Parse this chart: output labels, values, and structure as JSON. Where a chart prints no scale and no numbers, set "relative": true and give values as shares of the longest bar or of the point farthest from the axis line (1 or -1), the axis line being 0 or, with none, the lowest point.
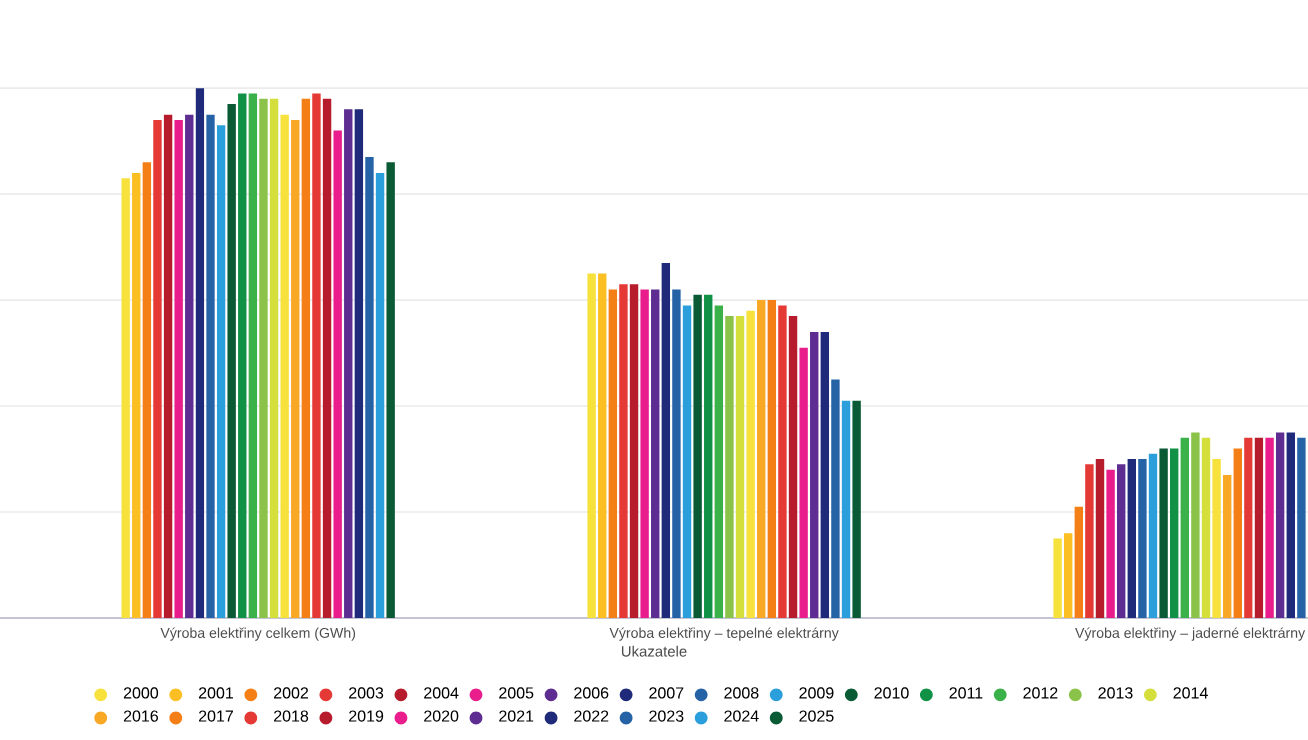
{
  "chart_data": {
    "type": "bar",
    "xlabel": "Ukazatele",
    "relative": true,
    "grid": "y",
    "legend": "bottom",
    "categories": [
      "Výroba elektřiny celkem (GWh)",
      "Výroba elektřiny – tepelné elektrárny",
      "Výroba elektřiny – jaderné elektrárny"
    ],
    "series": [
      {
        "name": "2000",
        "color": "#f7e13d",
        "values": [
          0.83,
          0.65,
          0.15
        ]
      },
      {
        "name": "2001",
        "color": "#fbbf24",
        "values": [
          0.84,
          0.65,
          0.16
        ]
      },
      {
        "name": "2002",
        "color": "#f57f17",
        "values": [
          0.86,
          0.62,
          0.21
        ]
      },
      {
        "name": "2003",
        "color": "#e53935",
        "values": [
          0.94,
          0.63,
          0.29
        ]
      },
      {
        "name": "2004",
        "color": "#b71c2c",
        "values": [
          0.95,
          0.63,
          0.3
        ]
      },
      {
        "name": "2005",
        "color": "#e91e8c",
        "values": [
          0.94,
          0.62,
          0.28
        ]
      },
      {
        "name": "2006",
        "color": "#5e2d91",
        "values": [
          0.95,
          0.62,
          0.29
        ]
      },
      {
        "name": "2007",
        "color": "#1f2a7a",
        "values": [
          1,
          0.67,
          0.3
        ]
      },
      {
        "name": "2008",
        "color": "#2563a6",
        "values": [
          0.95,
          0.62,
          0.3
        ]
      },
      {
        "name": "2009",
        "color": "#2a9fdc",
        "values": [
          0.93,
          0.59,
          0.31
        ]
      },
      {
        "name": "2010",
        "color": "#0b5a36",
        "values": [
          0.97,
          0.61,
          0.32
        ]
      },
      {
        "name": "2011",
        "color": "#119146",
        "values": [
          0.99,
          0.61,
          0.32
        ]
      },
      {
        "name": "2012",
        "color": "#3bb14a",
        "values": [
          0.99,
          0.59,
          0.34
        ]
      },
      {
        "name": "2013",
        "color": "#8bc34a",
        "values": [
          0.98,
          0.57,
          0.35
        ]
      },
      {
        "name": "2014",
        "color": "#d4df3c",
        "values": [
          0.98,
          0.57,
          0.34
        ]
      },
      {
        "color": "#f7e13d",
        "values": [
          0.95,
          0.58,
          0.3
        ]
      },
      {
        "name": "2016",
        "color": "#f9a825",
        "values": [
          0.94,
          0.6,
          0.27
        ]
      },
      {
        "name": "2017",
        "color": "#f57f17",
        "values": [
          0.98,
          0.6,
          0.32
        ]
      },
      {
        "name": "2018",
        "color": "#e53935",
        "values": [
          0.99,
          0.59,
          0.34
        ]
      },
      {
        "name": "2019",
        "color": "#b71c2c",
        "values": [
          0.98,
          0.57,
          0.34
        ]
      },
      {
        "name": "2020",
        "color": "#e91e8c",
        "values": [
          0.92,
          0.51,
          0.34
        ]
      },
      {
        "name": "2021",
        "color": "#5e2d91",
        "values": [
          0.96,
          0.54,
          0.35
        ]
      },
      {
        "name": "2022",
        "color": "#1f2a7a",
        "values": [
          0.96,
          0.54,
          0.35
        ]
      },
      {
        "name": "2023",
        "color": "#2563a6",
        "values": [
          0.87,
          0.45,
          0.34
        ]
      },
      {
        "name": "2024",
        "color": "#2a9fdc",
        "values": [
          0.84,
          0.41,
          null
        ]
      },
      {
        "name": "2025",
        "color": "#0b5a36",
        "values": [
          0.86,
          0.41,
          null
        ]
      }
    ]
  }
}
